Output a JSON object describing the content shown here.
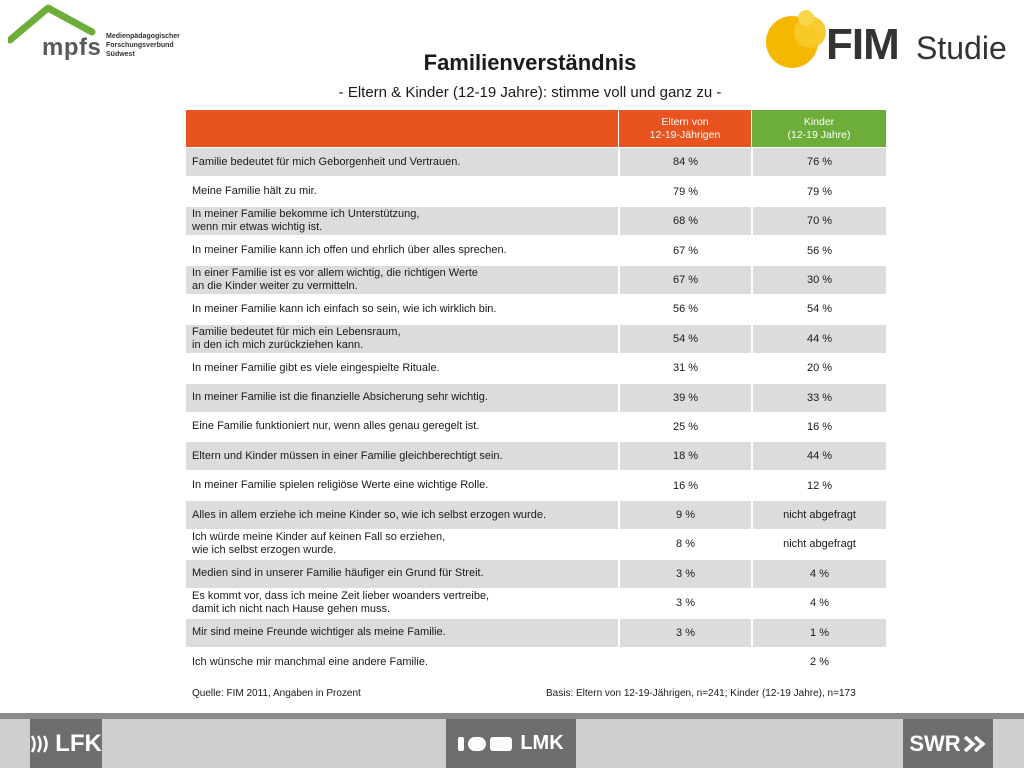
{
  "header": {
    "mpfs_name": "mpfs",
    "mpfs_subtitle_1": "Medienpädagogischer",
    "mpfs_subtitle_2": "Forschungsverbund",
    "mpfs_subtitle_3": "Südwest",
    "fim_name": "FIM",
    "fim_studie": "Studie",
    "title": "Familienverständnis",
    "subtitle": "- Eltern & Kinder (12-19 Jahre): stimme voll und ganz zu -"
  },
  "table": {
    "col_parents_1": "Eltern von",
    "col_parents_2": "12-19-Jährigen",
    "col_kids_1": "Kinder",
    "col_kids_2": "(12-19 Jahre)",
    "rows": [
      {
        "l1": "Familie bedeutet für mich Geborgenheit und Vertrauen.",
        "l2": "",
        "p": "84 %",
        "k": "76 %"
      },
      {
        "l1": "Meine Familie hält zu mir.",
        "l2": "",
        "p": "79 %",
        "k": "79 %"
      },
      {
        "l1": "In meiner Familie bekomme ich Unterstützung,",
        "l2": "wenn mir etwas wichtig ist.",
        "p": "68 %",
        "k": "70 %"
      },
      {
        "l1": "In meiner Familie kann ich offen und ehrlich über alles sprechen.",
        "l2": "",
        "p": "67 %",
        "k": "56 %"
      },
      {
        "l1": "In einer Familie ist es vor allem wichtig, die richtigen Werte",
        "l2": "an die Kinder weiter zu vermitteln.",
        "p": "67 %",
        "k": "30 %"
      },
      {
        "l1": "In meiner Familie kann ich einfach so sein, wie ich wirklich bin.",
        "l2": "",
        "p": "56 %",
        "k": "54 %"
      },
      {
        "l1": "Familie bedeutet für mich ein Lebensraum,",
        "l2": "in den ich mich zurückziehen kann.",
        "p": "54 %",
        "k": "44 %"
      },
      {
        "l1": "In meiner Familie gibt es viele eingespielte Rituale.",
        "l2": "",
        "p": "31 %",
        "k": "20 %"
      },
      {
        "l1": "In meiner Familie ist die finanzielle Absicherung sehr wichtig.",
        "l2": "",
        "p": "39 %",
        "k": "33 %"
      },
      {
        "l1": "Eine Familie funktioniert nur, wenn alles genau geregelt ist.",
        "l2": "",
        "p": "25 %",
        "k": "16 %"
      },
      {
        "l1": "Eltern und Kinder müssen in einer Familie gleichberechtigt sein.",
        "l2": "",
        "p": "18 %",
        "k": "44 %"
      },
      {
        "l1": "In meiner Familie spielen religiöse Werte eine wichtige Rolle.",
        "l2": "",
        "p": "16 %",
        "k": "12 %"
      },
      {
        "l1": "Alles in allem erziehe ich meine Kinder so, wie ich selbst erzogen wurde.",
        "l2": "",
        "p": "9 %",
        "k": "nicht abgefragt"
      },
      {
        "l1": "Ich würde meine Kinder auf keinen Fall so erziehen,",
        "l2": "wie ich selbst erzogen wurde.",
        "p": "8 %",
        "k": "nicht abgefragt"
      },
      {
        "l1": "Medien sind in unserer Familie häufiger ein Grund für Streit.",
        "l2": "",
        "p": "3 %",
        "k": "4 %"
      },
      {
        "l1": "Es kommt vor, dass ich meine Zeit lieber woanders vertreibe,",
        "l2": "damit ich nicht nach Hause gehen muss.",
        "p": "3 %",
        "k": "4 %"
      },
      {
        "l1": "Mir sind meine Freunde wichtiger als meine Familie.",
        "l2": "",
        "p": "3 %",
        "k": "1 %"
      },
      {
        "l1": "Ich wünsche mir manchmal eine andere Familie.",
        "l2": "",
        "p": "",
        "k": "2 %"
      }
    ]
  },
  "notes": {
    "source": "Quelle: FIM 2011,  Angaben in Prozent",
    "basis": "Basis: Eltern von 12-19-Jährigen, n=241; Kinder (12-19 Jahre), n=173"
  },
  "footer": {
    "lfk": "LFK",
    "lmk": "LMK",
    "swr": "SWR"
  },
  "colors": {
    "header_orange": "#e8531f",
    "header_green": "#6dad3a",
    "row_shade": "#dcdcdc"
  }
}
